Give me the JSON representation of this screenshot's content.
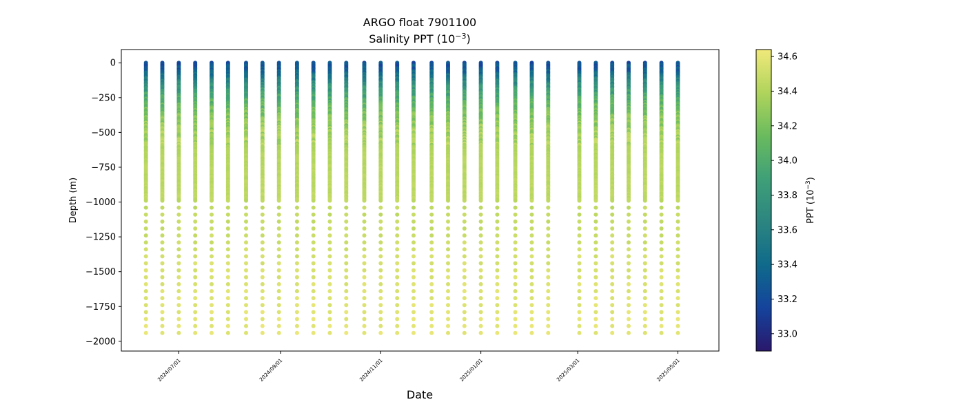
{
  "chart_data": {
    "type": "scatter",
    "title_line1": "ARGO float 7901100",
    "title_line2": "Salinity PPT (10",
    "title_line2_exp": "−3",
    "title_line2_close": ")",
    "xlabel": "Date",
    "ylabel": "Depth (m)",
    "x_range": [
      "2024-05-27",
      "2025-05-26"
    ],
    "ylim": [
      -2070,
      95
    ],
    "y_ticks": [
      0,
      -250,
      -500,
      -750,
      -1000,
      -1250,
      -1500,
      -1750,
      -2000
    ],
    "y_tick_labels": [
      "0",
      "−250",
      "−500",
      "−750",
      "−1000",
      "−1250",
      "−1500",
      "−1750",
      "−2000"
    ],
    "x_ticks": [
      "2024-07-01",
      "2024-09-01",
      "2024-11-01",
      "2025-01-01",
      "2025-03-01",
      "2025-05-01"
    ],
    "x_tick_labels": [
      "2024/07/01",
      "2024/09/01",
      "2024/11/01",
      "2025/01/01",
      "2025/03/01",
      "2025/05/01"
    ],
    "profile_dates": [
      "2024-06-11",
      "2024-06-21",
      "2024-07-01",
      "2024-07-11",
      "2024-07-21",
      "2024-07-31",
      "2024-08-11",
      "2024-08-21",
      "2024-08-31",
      "2024-09-11",
      "2024-09-21",
      "2024-10-01",
      "2024-10-11",
      "2024-10-22",
      "2024-11-01",
      "2024-11-11",
      "2024-11-21",
      "2024-12-02",
      "2024-12-12",
      "2024-12-22",
      "2025-01-01",
      "2025-01-11",
      "2025-01-22",
      "2025-02-01",
      "2025-02-11",
      "2025-03-02",
      "2025-03-12",
      "2025-03-22",
      "2025-04-01",
      "2025-04-11",
      "2025-04-21",
      "2025-05-01"
    ],
    "salinity_profile": {
      "depth": [
        0,
        -20,
        -50,
        -100,
        -150,
        -200,
        -300,
        -400,
        -500,
        -700,
        -1000,
        -1200,
        -1500,
        -2000
      ],
      "salinity": [
        33.25,
        33.25,
        33.3,
        33.5,
        33.7,
        33.85,
        34.1,
        34.25,
        34.35,
        34.42,
        34.45,
        34.48,
        34.55,
        34.6
      ]
    },
    "deep_sample_depth_step": 50,
    "colorbar": {
      "label": "PPT (10",
      "label_exp": "−3",
      "label_close": ")",
      "range": [
        32.9,
        34.64
      ],
      "ticks": [
        33.0,
        33.2,
        33.4,
        33.6,
        33.8,
        34.0,
        34.2,
        34.4,
        34.6
      ],
      "tick_labels": [
        "33.0",
        "33.2",
        "33.4",
        "33.6",
        "33.8",
        "34.0",
        "34.2",
        "34.4",
        "34.6"
      ],
      "colormap": "haline",
      "stops": [
        "#2a186c",
        "#14439c",
        "#0f6a8b",
        "#2c8580",
        "#3fa078",
        "#6abb5e",
        "#b0d45c",
        "#f0e97a"
      ]
    }
  }
}
